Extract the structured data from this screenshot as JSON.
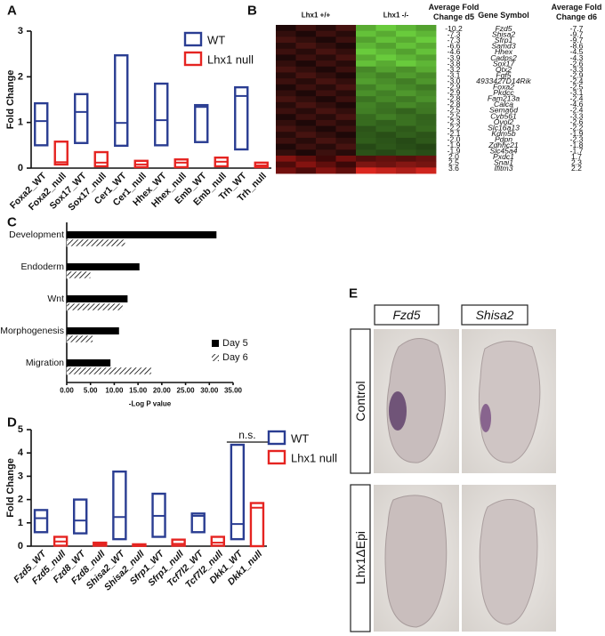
{
  "panel_labels": [
    "A",
    "B",
    "C",
    "D",
    "E"
  ],
  "chart_data": [
    {
      "type": "floating-box",
      "ylabel": "Fold Change",
      "categories": [
        "Foxa2_WT",
        "Foxa2_null",
        "Sox17_WT",
        "Sox17_null",
        "Cer1_WT",
        "Cer1_null",
        "Hhex_WT",
        "Hhex_null",
        "Emb_WT",
        "Emb_null",
        "Trh_WT",
        "Trh_null"
      ],
      "ylim": [
        0,
        3
      ],
      "yticks": [
        0,
        1,
        2,
        3
      ],
      "series": [
        {
          "name": "WT",
          "color": "#2a3d92",
          "low": [
            0.5,
            null,
            0.55,
            null,
            0.49,
            null,
            0.5,
            null,
            0.57,
            null,
            0.41,
            null
          ],
          "median": [
            1.03,
            null,
            1.23,
            null,
            0.99,
            null,
            1.05,
            null,
            1.34,
            null,
            1.58,
            null
          ],
          "high": [
            1.42,
            null,
            1.62,
            null,
            2.47,
            null,
            1.85,
            null,
            1.38,
            null,
            1.77,
            null
          ]
        },
        {
          "name": "Lhx1 null",
          "color": "#e52421",
          "low": [
            null,
            0.08,
            null,
            0.04,
            null,
            0.02,
            null,
            0.02,
            null,
            0.04,
            null,
            0.02
          ],
          "median": [
            null,
            0.13,
            null,
            0.12,
            null,
            0.08,
            null,
            0.12,
            null,
            0.14,
            null,
            0.06
          ],
          "high": [
            null,
            0.58,
            null,
            0.35,
            null,
            0.16,
            null,
            0.19,
            null,
            0.23,
            null,
            0.12
          ]
        }
      ]
    },
    {
      "type": "heatmap",
      "column_groups": [
        "Lhx1 +/+",
        "Lhx1 -/-"
      ],
      "values": [
        -10.2,
        -7.3,
        -7.3,
        -6.6,
        -4.6,
        -3.9,
        -3.8,
        -3.2,
        -3.1,
        -3.0,
        -2.9,
        -2.9,
        -2.8,
        -2.8,
        -2.5,
        -2.5,
        -2.3,
        -2.2,
        -2.1,
        -2.0,
        -1.9,
        -1.9,
        2.0,
        2.5,
        3.6
      ],
      "low_color": "#6fd63f",
      "high_color": "#ee2a22"
    },
    {
      "type": "hbar",
      "xlabel": "-Log P value",
      "categories": [
        "Development",
        "Endoderm",
        "Wnt",
        "Morphogenesis",
        "Migration"
      ],
      "xlim": [
        0,
        35
      ],
      "xticks": [
        {
          "value": 0,
          "label": "0.00"
        },
        {
          "value": 5,
          "label": "5.00"
        },
        {
          "value": 10,
          "label": "10.00"
        },
        {
          "value": 15,
          "label": "15.00"
        },
        {
          "value": 20,
          "label": "20.00"
        },
        {
          "value": 25,
          "label": "25.00"
        },
        {
          "value": 30,
          "label": "30.00"
        },
        {
          "value": 35,
          "label": "35.00"
        }
      ],
      "series": [
        {
          "name": "Day 5",
          "color": "#000000",
          "pattern": "solid",
          "values": [
            31.5,
            15.3,
            12.8,
            11.0,
            9.2
          ]
        },
        {
          "name": "Day 6",
          "color": "#000000",
          "pattern": "hatch",
          "values": [
            12.3,
            5.0,
            11.8,
            5.5,
            17.8
          ]
        }
      ]
    },
    {
      "type": "floating-box",
      "ylabel": "Fold Change",
      "italic_labels": true,
      "annotation": "n.s.",
      "categories": [
        "Fzd5_WT",
        "Fzd5_null",
        "Fzd8_WT",
        "Fzd8_null",
        "Shisa2_WT",
        "Shisa2_null",
        "Sfrp1_WT",
        "Sfrp1_null",
        "Tcf7l2_WT",
        "Tcf7l2_null",
        "Dkk1_WT",
        "Dkk1_null"
      ],
      "ylim": [
        0,
        5
      ],
      "yticks": [
        0,
        1,
        2,
        3,
        4,
        5
      ],
      "series": [
        {
          "name": "WT",
          "color": "#2a3d92",
          "low": [
            0.6,
            null,
            0.55,
            null,
            0.3,
            null,
            0.4,
            null,
            0.6,
            null,
            0.3,
            null
          ],
          "median": [
            1.2,
            null,
            1.1,
            null,
            1.25,
            null,
            1.3,
            null,
            1.3,
            null,
            0.95,
            null
          ],
          "high": [
            1.55,
            null,
            2.0,
            null,
            3.2,
            null,
            2.25,
            null,
            1.4,
            null,
            4.35,
            null
          ]
        },
        {
          "name": "Lhx1 null",
          "color": "#e52421",
          "low": [
            null,
            0.02,
            null,
            0.02,
            null,
            0.01,
            null,
            0.02,
            null,
            0.02,
            null,
            0.0
          ],
          "median": [
            null,
            0.2,
            null,
            0.08,
            null,
            0.04,
            null,
            0.1,
            null,
            0.15,
            null,
            1.65
          ],
          "high": [
            null,
            0.4,
            null,
            0.15,
            null,
            0.08,
            null,
            0.28,
            null,
            0.4,
            null,
            1.85
          ]
        }
      ]
    }
  ],
  "table": {
    "header": [
      "Average Fold Change d5",
      "Gene Symbol",
      "Average Fold Change d6"
    ],
    "rows": [
      [
        "-10.2",
        "Fzd5",
        "-7.7"
      ],
      [
        "-7.3",
        "Shisa2",
        "-9.7"
      ],
      [
        "-7.3",
        "Sfrp1",
        "-9.7"
      ],
      [
        "-6.6",
        "Samd3",
        "-8.6"
      ],
      [
        "-4.6",
        "Hhex",
        "-4.5"
      ],
      [
        "-3.9",
        "Cadps2",
        "-4.3"
      ],
      [
        "-3.8",
        "Sox17",
        "-2.6"
      ],
      [
        "-3.2",
        "Otx2",
        "-3.3"
      ],
      [
        "-3.1",
        "Fgf5",
        "-2.9"
      ],
      [
        "-3.0",
        "4933427D14Rik",
        "-2.4"
      ],
      [
        "-2.9",
        "Foxa2",
        "-2.5"
      ],
      [
        "-2.9",
        "Pkdcc",
        "-3.1"
      ],
      [
        "-2.8",
        "Fam213a",
        "-2.4"
      ],
      [
        "-2.8",
        "Calca",
        "-4.6"
      ],
      [
        "-2.5",
        "Sema6d",
        "-2.4"
      ],
      [
        "-2.5",
        "Cyb561",
        "-3.3"
      ],
      [
        "-2.3",
        "Ovol2",
        "-2.6"
      ],
      [
        "-2.2",
        "Slc16a13",
        "-2.2"
      ],
      [
        "-2.1",
        "Kdm5b",
        "-1.9"
      ],
      [
        "-2.0",
        "Pdpn",
        "-2.3"
      ],
      [
        "-1.9",
        "Zdhhc21",
        "-1.8"
      ],
      [
        "-1.9",
        "Slc45a4",
        "-1.7"
      ],
      [
        "2.0",
        "Pxdc1",
        "1.7"
      ],
      [
        "2.5",
        "Snai1",
        "2.3"
      ],
      [
        "3.6",
        "Ifitm3",
        "2.2"
      ]
    ]
  },
  "images": {
    "columns": [
      "Fzd5",
      "Shisa2"
    ],
    "rows": [
      "Control",
      "Lhx1ΔEpi"
    ]
  }
}
